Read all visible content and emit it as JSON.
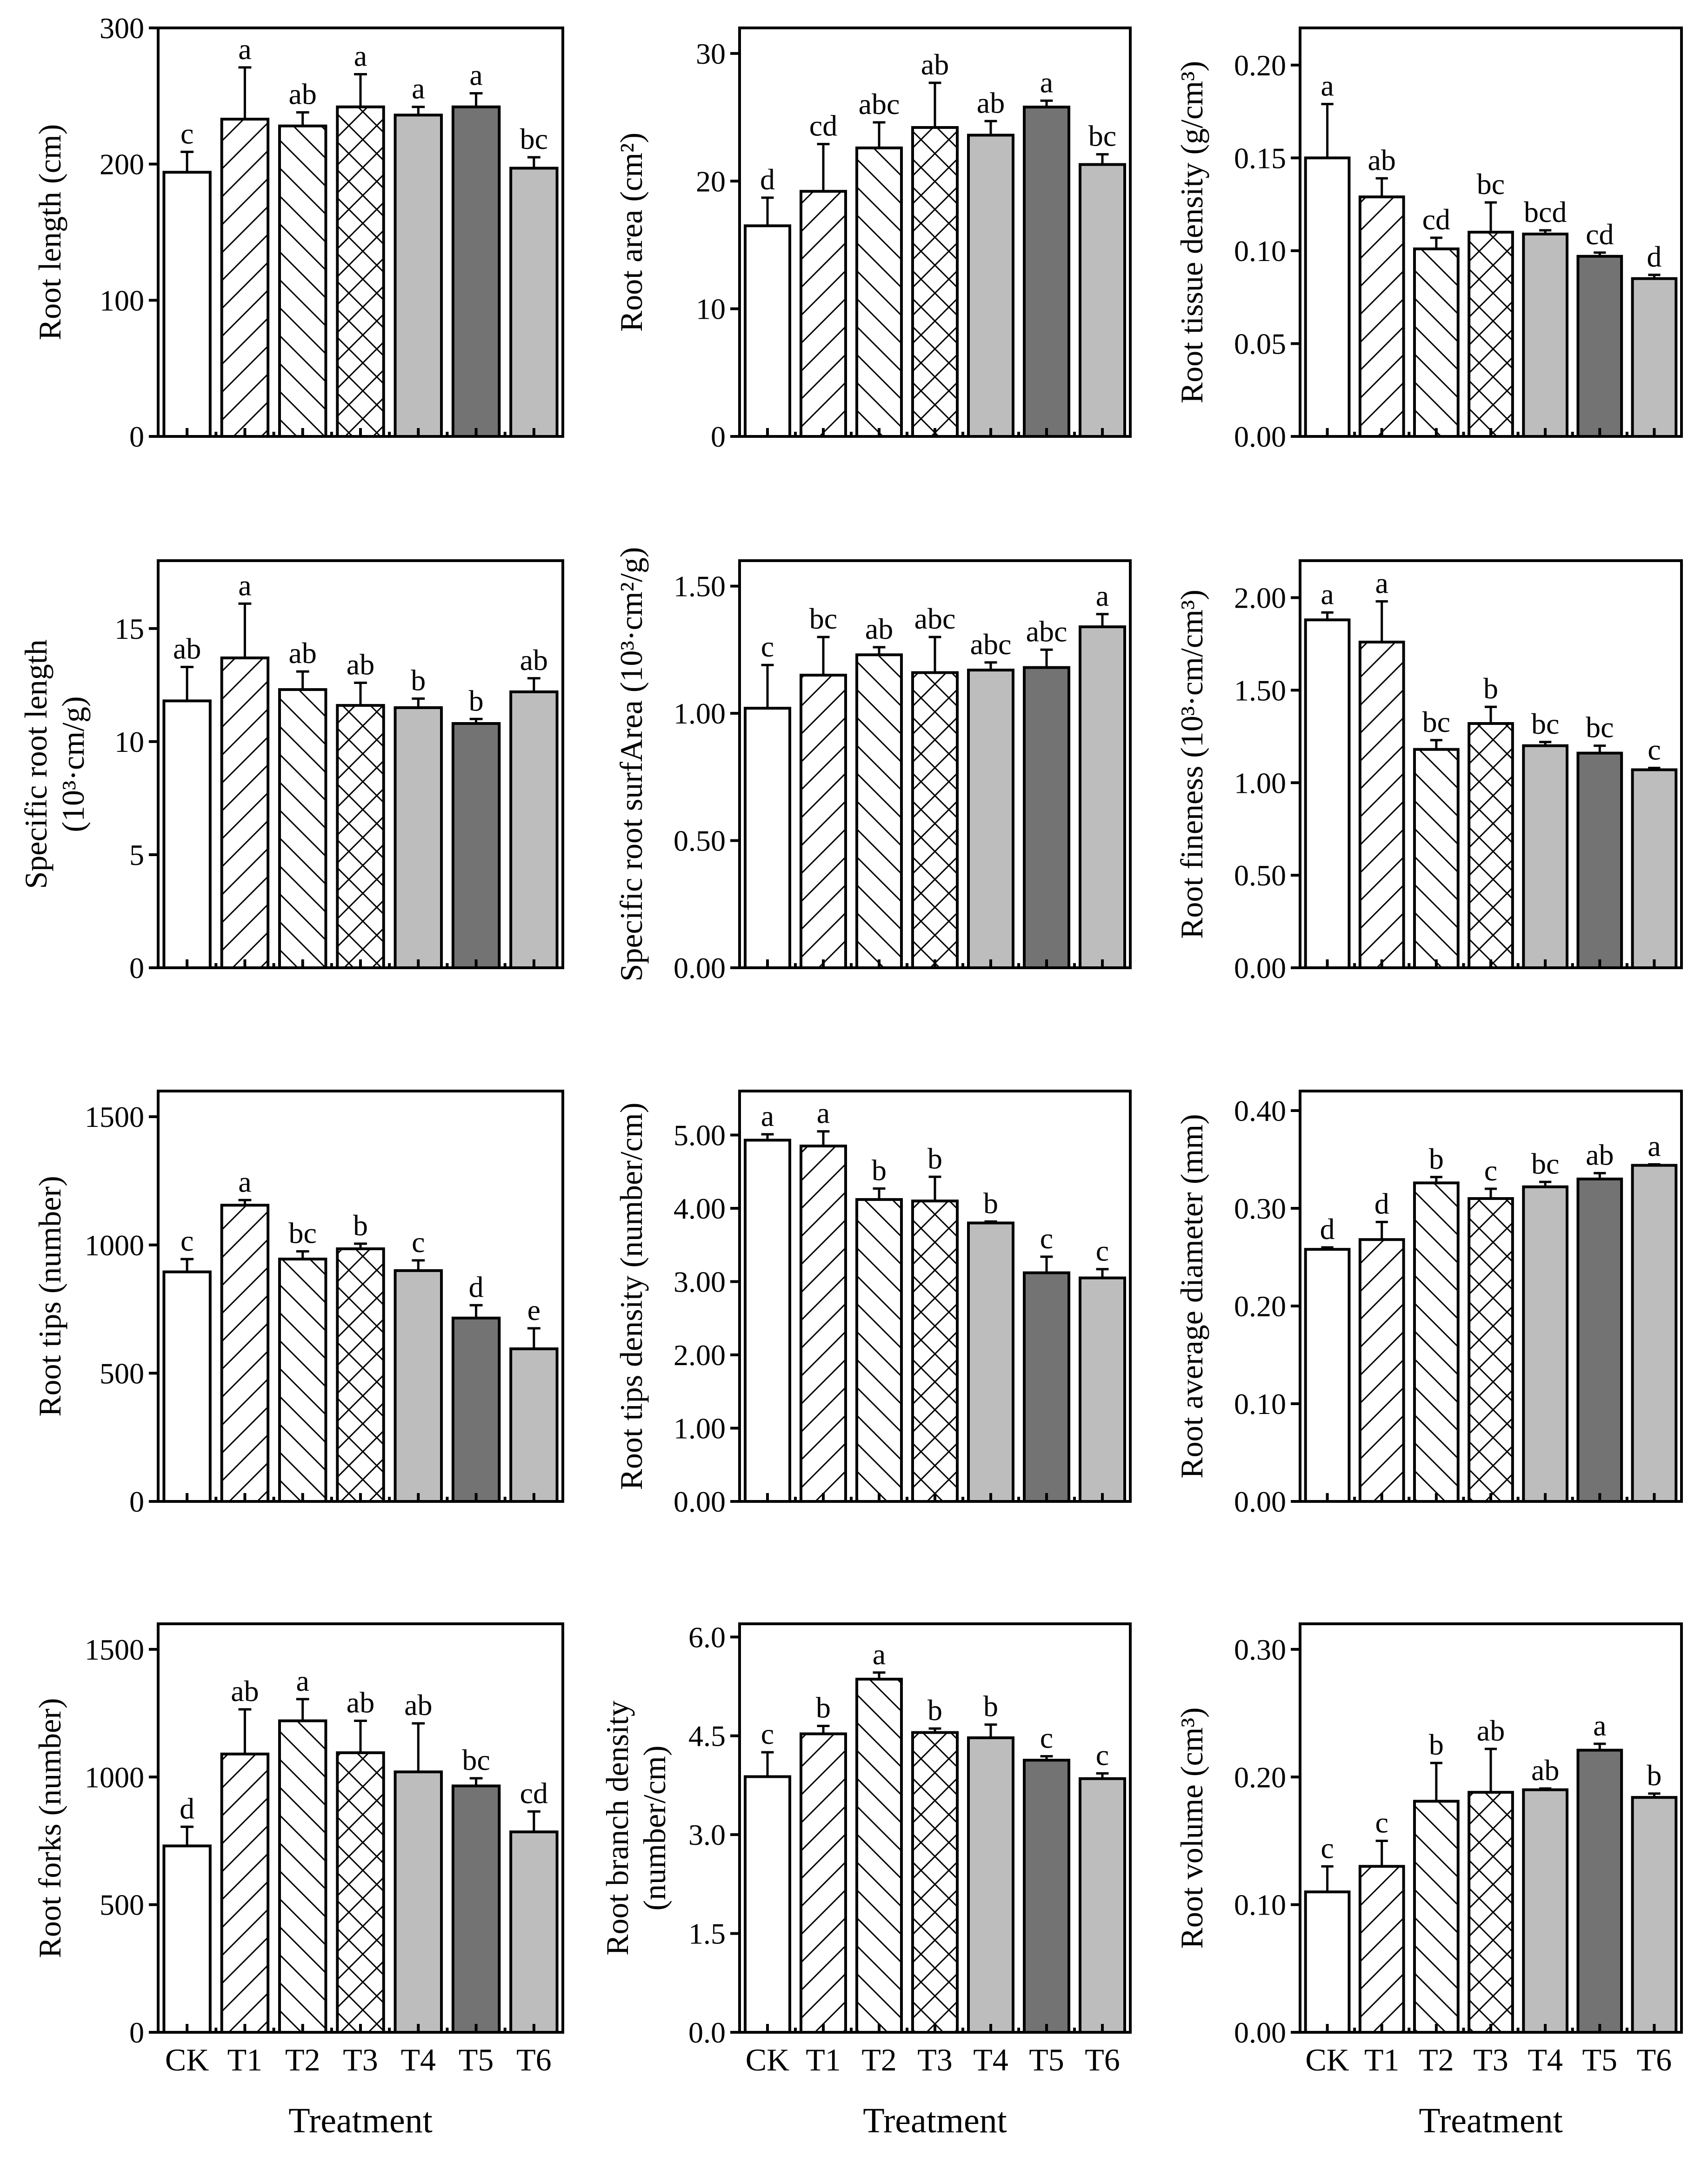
{
  "chart_data": [
    {
      "type": "bar",
      "ylabel": "Root length (cm)",
      "ylim": [
        0,
        300
      ],
      "yticks": [
        "0",
        "100",
        "200",
        "300"
      ],
      "ytick_values": [
        0,
        100,
        200,
        300
      ],
      "categories": [
        "CK",
        "T1",
        "T2",
        "T3",
        "T4",
        "T5",
        "T6"
      ],
      "values": [
        194,
        233,
        228,
        242,
        236,
        242,
        197
      ],
      "errors": [
        15,
        38,
        10,
        24,
        6,
        10,
        8
      ],
      "labels": [
        "c",
        "a",
        "ab",
        "a",
        "a",
        "a",
        "bc"
      ],
      "xlabel": ""
    },
    {
      "type": "bar",
      "ylabel": "Root area (cm²)",
      "ylim": [
        0,
        32
      ],
      "yticks": [
        "0",
        "10",
        "20",
        "30"
      ],
      "ytick_values": [
        0,
        10,
        20,
        30
      ],
      "categories": [
        "CK",
        "T1",
        "T2",
        "T3",
        "T4",
        "T5",
        "T6"
      ],
      "values": [
        16.5,
        19.2,
        22.6,
        24.2,
        23.6,
        25.8,
        21.3
      ],
      "errors": [
        2.2,
        3.7,
        2.0,
        3.5,
        1.1,
        0.5,
        0.8
      ],
      "labels": [
        "d",
        "cd",
        "abc",
        "ab",
        "ab",
        "a",
        "bc"
      ],
      "xlabel": ""
    },
    {
      "type": "bar",
      "ylabel": "Root tissue density (g/cm³)",
      "ylim": [
        0,
        0.22
      ],
      "yticks": [
        "0.00",
        "0.05",
        "0.10",
        "0.15",
        "0.20"
      ],
      "ytick_values": [
        0,
        0.05,
        0.1,
        0.15,
        0.2
      ],
      "categories": [
        "CK",
        "T1",
        "T2",
        "T3",
        "T4",
        "T5",
        "T6"
      ],
      "values": [
        0.15,
        0.129,
        0.101,
        0.11,
        0.109,
        0.097,
        0.085
      ],
      "errors": [
        0.029,
        0.01,
        0.006,
        0.016,
        0.002,
        0.002,
        0.002
      ],
      "labels": [
        "a",
        "ab",
        "cd",
        "bc",
        "bcd",
        "cd",
        "d"
      ],
      "xlabel": ""
    },
    {
      "type": "bar",
      "ylabel": [
        "Specific root length",
        "(10³·cm/g)"
      ],
      "ylim": [
        0,
        18
      ],
      "yticks": [
        "0",
        "5",
        "10",
        "15"
      ],
      "ytick_values": [
        0,
        5,
        10,
        15
      ],
      "categories": [
        "CK",
        "T1",
        "T2",
        "T3",
        "T4",
        "T5",
        "T6"
      ],
      "values": [
        11.8,
        13.7,
        12.3,
        11.6,
        11.5,
        10.8,
        12.2
      ],
      "errors": [
        1.5,
        2.4,
        0.8,
        1.0,
        0.4,
        0.2,
        0.6
      ],
      "labels": [
        "ab",
        "a",
        "ab",
        "ab",
        "b",
        "b",
        "ab"
      ],
      "xlabel": ""
    },
    {
      "type": "bar",
      "ylabel": "Specific root surfArea (10³·cm²/g)",
      "ylim": [
        0,
        1.6
      ],
      "yticks": [
        "0.00",
        "0.50",
        "1.00",
        "1.50"
      ],
      "ytick_values": [
        0,
        0.5,
        1.0,
        1.5
      ],
      "categories": [
        "CK",
        "T1",
        "T2",
        "T3",
        "T4",
        "T5",
        "T6"
      ],
      "values": [
        1.02,
        1.15,
        1.23,
        1.16,
        1.17,
        1.18,
        1.34
      ],
      "errors": [
        0.17,
        0.15,
        0.03,
        0.14,
        0.03,
        0.07,
        0.05
      ],
      "labels": [
        "c",
        "bc",
        "ab",
        "abc",
        "abc",
        "abc",
        "a"
      ],
      "xlabel": ""
    },
    {
      "type": "bar",
      "ylabel": "Root fineness (10³·cm/cm³)",
      "ylim": [
        0,
        2.2
      ],
      "yticks": [
        "0.00",
        "0.50",
        "1.00",
        "1.50",
        "2.00"
      ],
      "ytick_values": [
        0,
        0.5,
        1.0,
        1.5,
        2.0
      ],
      "categories": [
        "CK",
        "T1",
        "T2",
        "T3",
        "T4",
        "T5",
        "T6"
      ],
      "values": [
        1.88,
        1.76,
        1.18,
        1.32,
        1.2,
        1.16,
        1.07
      ],
      "errors": [
        0.04,
        0.22,
        0.05,
        0.09,
        0.02,
        0.04,
        0.01
      ],
      "labels": [
        "a",
        "a",
        "bc",
        "b",
        "bc",
        "bc",
        "c"
      ],
      "xlabel": ""
    },
    {
      "type": "bar",
      "ylabel": "Root  tips (number)",
      "ylim": [
        0,
        1600
      ],
      "yticks": [
        "0",
        "500",
        "1000",
        "1500"
      ],
      "ytick_values": [
        0,
        500,
        1000,
        1500
      ],
      "categories": [
        "CK",
        "T1",
        "T2",
        "T3",
        "T4",
        "T5",
        "T6"
      ],
      "values": [
        895,
        1155,
        945,
        985,
        900,
        715,
        595
      ],
      "errors": [
        50,
        20,
        30,
        20,
        40,
        50,
        80
      ],
      "labels": [
        "c",
        "a",
        "bc",
        "b",
        "c",
        "d",
        "e"
      ],
      "xlabel": ""
    },
    {
      "type": "bar",
      "ylabel": "Root tips density (number/cm)",
      "ylim": [
        0,
        5.6
      ],
      "yticks": [
        "0.00",
        "1.00",
        "2.00",
        "3.00",
        "4.00",
        "5.00"
      ],
      "ytick_values": [
        0,
        1,
        2,
        3,
        4,
        5
      ],
      "categories": [
        "CK",
        "T1",
        "T2",
        "T3",
        "T4",
        "T5",
        "T6"
      ],
      "values": [
        4.93,
        4.85,
        4.12,
        4.1,
        3.8,
        3.12,
        3.05
      ],
      "errors": [
        0.08,
        0.2,
        0.15,
        0.33,
        0.02,
        0.22,
        0.12
      ],
      "labels": [
        "a",
        "a",
        "b",
        "b",
        "b",
        "c",
        "c"
      ],
      "xlabel": ""
    },
    {
      "type": "bar",
      "ylabel": "Root average diameter (mm)",
      "ylim": [
        0,
        0.42
      ],
      "yticks": [
        "0.00",
        "0.10",
        "0.20",
        "0.30",
        "0.40"
      ],
      "ytick_values": [
        0,
        0.1,
        0.2,
        0.3,
        0.4
      ],
      "categories": [
        "CK",
        "T1",
        "T2",
        "T3",
        "T4",
        "T5",
        "T6"
      ],
      "values": [
        0.258,
        0.268,
        0.326,
        0.31,
        0.322,
        0.33,
        0.344
      ],
      "errors": [
        0.002,
        0.018,
        0.006,
        0.01,
        0.005,
        0.006,
        0.001
      ],
      "labels": [
        "d",
        "d",
        "b",
        "c",
        "bc",
        "ab",
        "a"
      ],
      "xlabel": ""
    },
    {
      "type": "bar",
      "ylabel": "Root forks (number)",
      "ylim": [
        0,
        1600
      ],
      "yticks": [
        "0",
        "500",
        "1000",
        "1500"
      ],
      "ytick_values": [
        0,
        500,
        1000,
        1500
      ],
      "categories": [
        "CK",
        "T1",
        "T2",
        "T3",
        "T4",
        "T5",
        "T6"
      ],
      "values": [
        730,
        1090,
        1220,
        1095,
        1020,
        965,
        785
      ],
      "errors": [
        75,
        175,
        85,
        125,
        190,
        30,
        80
      ],
      "labels": [
        "d",
        "ab",
        "a",
        "ab",
        "ab",
        "bc",
        "cd"
      ],
      "xlabel": "Treatment"
    },
    {
      "type": "bar",
      "ylabel": [
        "Root branch density",
        "(number/cm)"
      ],
      "ylim": [
        0,
        6.2
      ],
      "yticks": [
        "0.0",
        "1.5",
        "3.0",
        "4.5",
        "6.0"
      ],
      "ytick_values": [
        0,
        1.5,
        3.0,
        4.5,
        6.0
      ],
      "categories": [
        "CK",
        "T1",
        "T2",
        "T3",
        "T4",
        "T5",
        "T6"
      ],
      "values": [
        3.88,
        4.53,
        5.36,
        4.55,
        4.47,
        4.13,
        3.85
      ],
      "errors": [
        0.37,
        0.12,
        0.1,
        0.06,
        0.2,
        0.06,
        0.08
      ],
      "labels": [
        "c",
        "b",
        "a",
        "b",
        "b",
        "c",
        "c"
      ],
      "xlabel": "Treatment"
    },
    {
      "type": "bar",
      "ylabel": "Root volume (cm³)",
      "ylim": [
        0,
        0.32
      ],
      "yticks": [
        "0.00",
        "0.10",
        "0.20",
        "0.30"
      ],
      "ytick_values": [
        0,
        0.1,
        0.2,
        0.3
      ],
      "categories": [
        "CK",
        "T1",
        "T2",
        "T3",
        "T4",
        "T5",
        "T6"
      ],
      "values": [
        0.11,
        0.13,
        0.181,
        0.188,
        0.19,
        0.221,
        0.184
      ],
      "errors": [
        0.02,
        0.02,
        0.03,
        0.034,
        0.001,
        0.005,
        0.003
      ],
      "labels": [
        "c",
        "c",
        "b",
        "ab",
        "ab",
        "a",
        "b"
      ],
      "xlabel": "Treatment"
    }
  ],
  "fill_colors": [
    "#ffffff",
    "#ffffff",
    "#ffffff",
    "#ffffff",
    "#bdbdbd",
    "#737373",
    "#bdbdbd"
  ],
  "bar_patterns": [
    "none",
    "diag-fwd",
    "diag-back",
    "crosshatch",
    "none",
    "none",
    "none"
  ]
}
